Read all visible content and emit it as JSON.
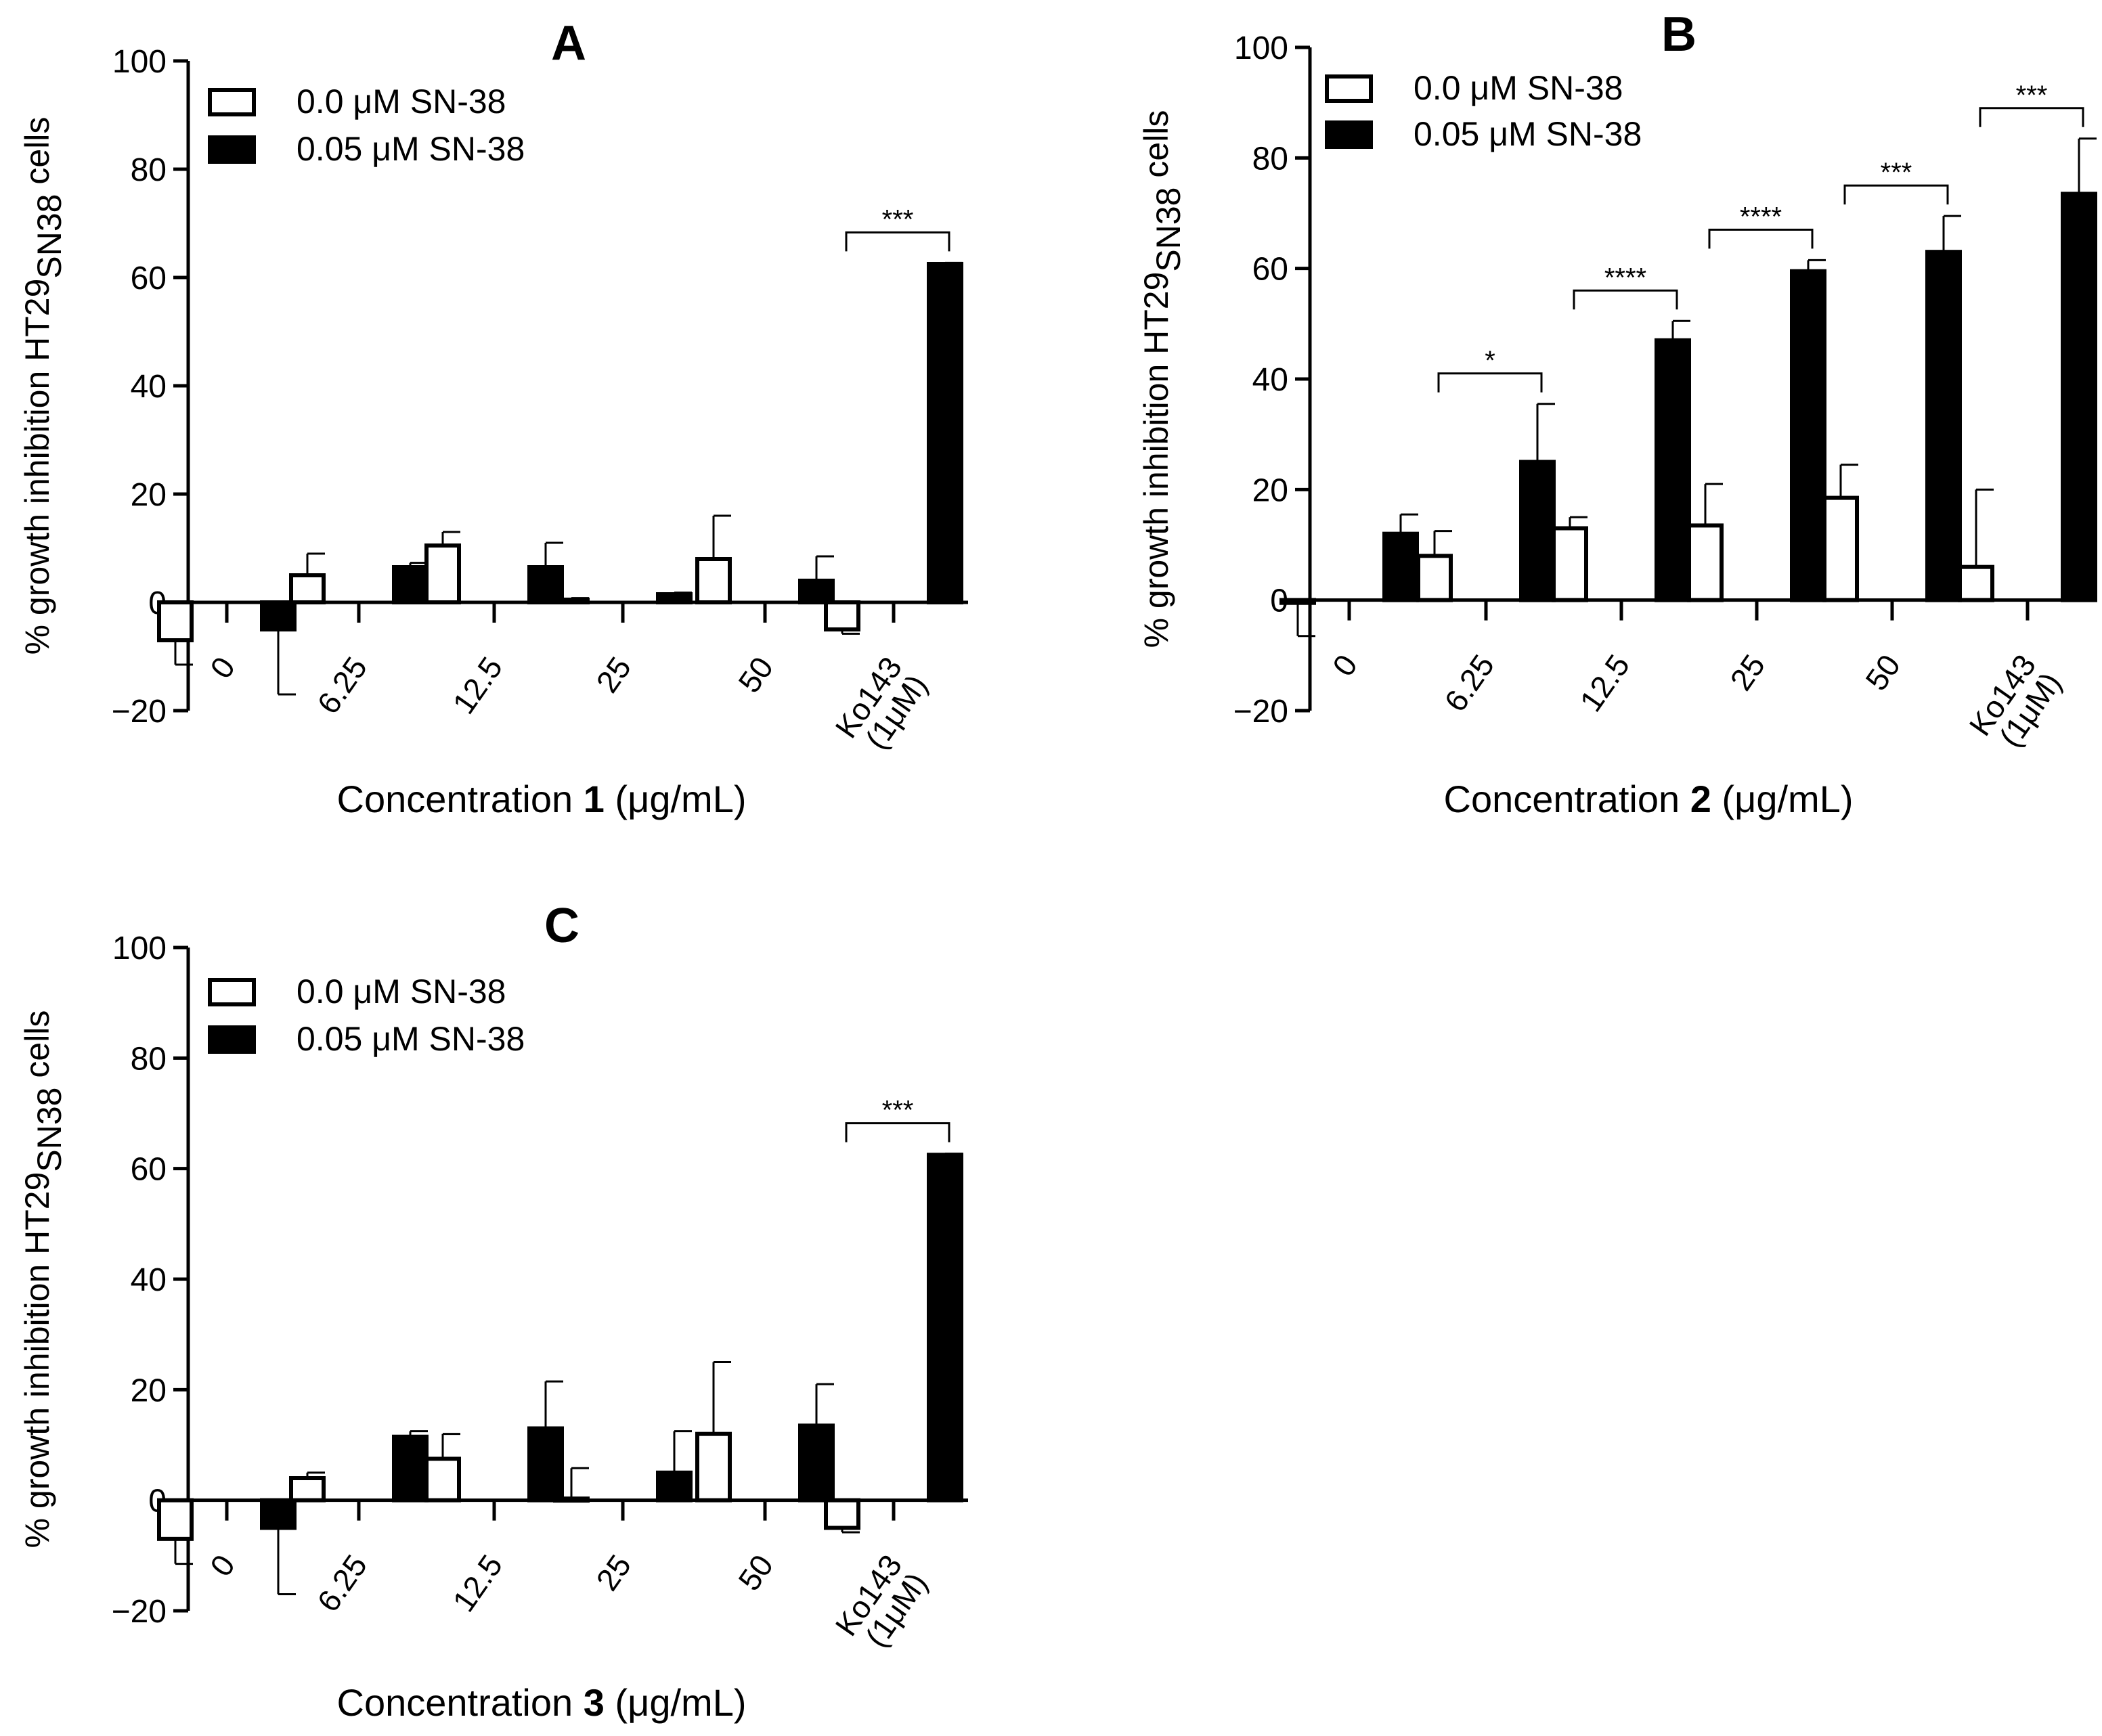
{
  "figure": {
    "y_axis_label": "% growth inhibition HT29",
    "y_axis_label_sub": "SN38",
    "y_axis_label_suffix": " cells",
    "legend": [
      "0.0 μM SN-38",
      "0.05 μM SN-38"
    ],
    "colors": {
      "open_fill": "#ffffff",
      "solid_fill": "#000000",
      "stroke": "#000000"
    }
  },
  "chart_data": [
    {
      "panel": "A",
      "type": "bar",
      "title": "A",
      "xlabel_prefix": "Concentration ",
      "xlabel_compound": "1",
      "xlabel_suffix": " (μg/mL)",
      "categories": [
        "0",
        "6.25",
        "12.5",
        "25",
        "50",
        "Ko143|(1μM)"
      ],
      "ylim": [
        -20,
        100
      ],
      "yticks": [
        -20,
        0,
        20,
        40,
        60,
        80,
        100
      ],
      "series": [
        {
          "name": "0.0 μM SN-38",
          "values": [
            -7,
            5,
            10.5,
            0.5,
            8,
            -5
          ],
          "errors": [
            4.5,
            4,
            2.5,
            0.3,
            8,
            0.8
          ]
        },
        {
          "name": "0.05 μM SN-38",
          "values": [
            -5,
            6.5,
            6.5,
            1.5,
            4,
            62.5
          ],
          "errors": [
            12,
            0.8,
            4.5,
            0.3,
            4.5,
            0.2
          ]
        }
      ],
      "significance": [
        {
          "category_index": 5,
          "label": "***"
        }
      ]
    },
    {
      "panel": "B",
      "type": "bar",
      "title": "B",
      "xlabel_prefix": "Concentration ",
      "xlabel_compound": "2",
      "xlabel_suffix": " (μg/mL)",
      "categories": [
        "0",
        "6.25",
        "12.5",
        "25",
        "50",
        "Ko143|(1μM)"
      ],
      "ylim": [
        -20,
        100
      ],
      "yticks": [
        -20,
        0,
        20,
        40,
        60,
        80,
        100
      ],
      "series": [
        {
          "name": "0.0 μM SN-38",
          "values": [
            -0.5,
            8,
            13,
            13.5,
            18.5,
            6
          ],
          "errors": [
            6,
            4.5,
            2,
            7.5,
            6,
            14
          ]
        },
        {
          "name": "0.05 μM SN-38",
          "values": [
            12,
            25,
            47,
            59.5,
            63,
            73.5
          ],
          "errors": [
            3.5,
            10.5,
            3.5,
            2,
            6.5,
            10
          ]
        }
      ],
      "significance": [
        {
          "category_index": 1,
          "label": "*"
        },
        {
          "category_index": 2,
          "label": "****"
        },
        {
          "category_index": 3,
          "label": "****"
        },
        {
          "category_index": 4,
          "label": "***"
        },
        {
          "category_index": 5,
          "label": "***"
        }
      ]
    },
    {
      "panel": "C",
      "type": "bar",
      "title": "C",
      "xlabel_prefix": "Concentration ",
      "xlabel_compound": "3",
      "xlabel_suffix": " (μg/mL)",
      "categories": [
        "0",
        "6.25",
        "12.5",
        "25",
        "50",
        "Ko143|(1μM)"
      ],
      "ylim": [
        -20,
        100
      ],
      "yticks": [
        -20,
        0,
        20,
        40,
        60,
        80,
        100
      ],
      "series": [
        {
          "name": "0.0 μM SN-38",
          "values": [
            -7,
            4,
            7.5,
            0.3,
            12,
            -5
          ],
          "errors": [
            4.5,
            1,
            4.5,
            5.5,
            13,
            0.8
          ]
        },
        {
          "name": "0.05 μM SN-38",
          "values": [
            -5,
            11.5,
            13,
            5,
            13.5,
            62.5
          ],
          "errors": [
            12,
            1,
            8.5,
            7.5,
            7.5,
            0.2
          ]
        }
      ],
      "significance": [
        {
          "category_index": 5,
          "label": "***"
        }
      ]
    }
  ]
}
